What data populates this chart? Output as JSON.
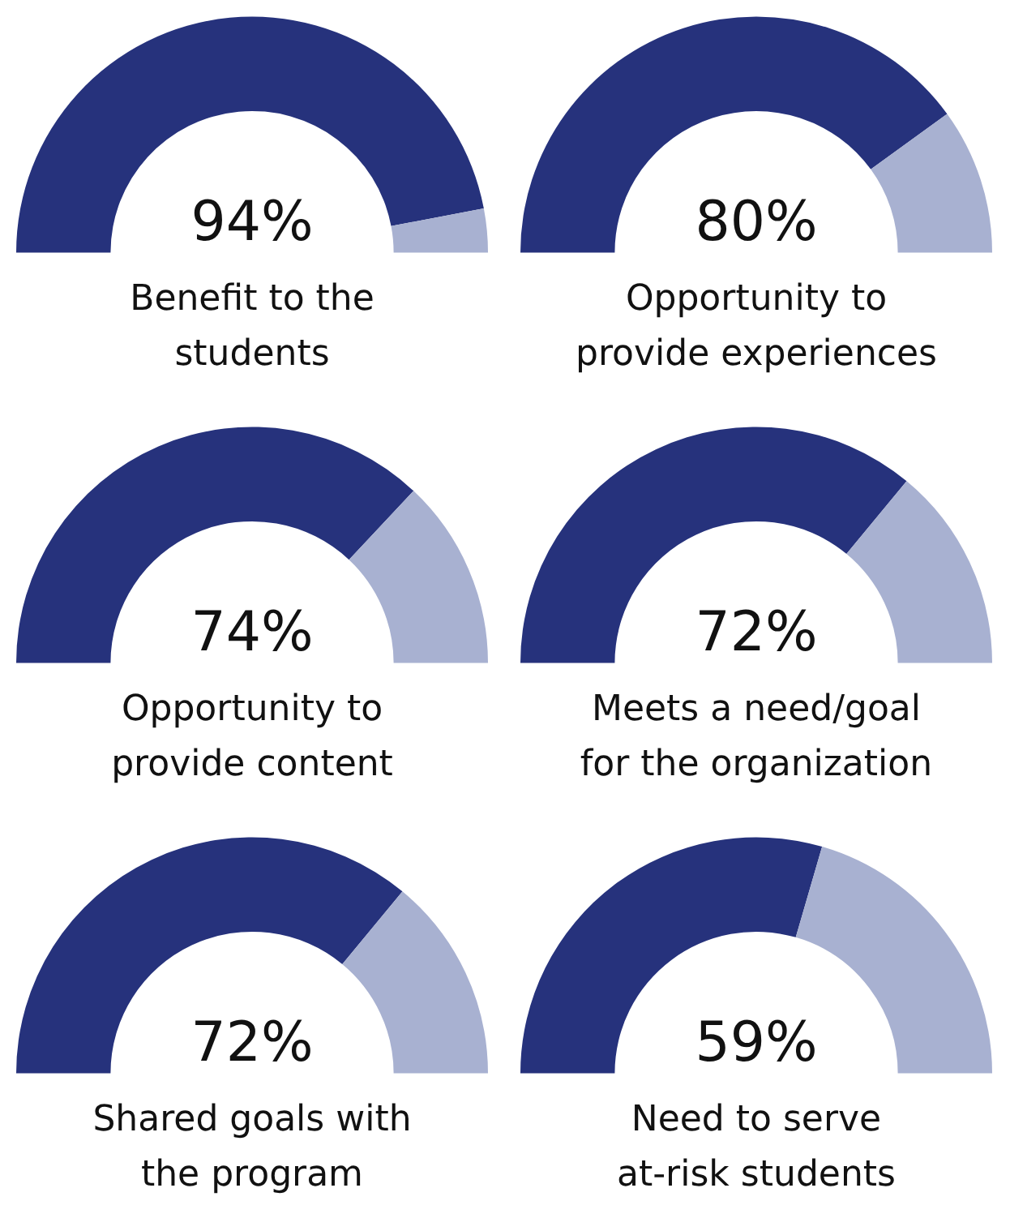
{
  "chart_data": [
    {
      "type": "donut",
      "title": "Benefit to the\nstudents",
      "categories": [
        null,
        null
      ],
      "values": [
        94,
        6
      ],
      "colors": [
        "#26327c",
        "#a8b1d1"
      ],
      "value_labels": [
        "94%",
        null
      ],
      "legend": false
    },
    {
      "type": "donut",
      "title": "Opportunity to\nprovide experiences",
      "categories": [
        null,
        null
      ],
      "values": [
        80,
        20
      ],
      "colors": [
        "#26327c",
        "#a8b1d1"
      ],
      "value_labels": [
        "80%",
        null
      ],
      "legend": false
    },
    {
      "type": "donut",
      "title": "Opportunity to\nprovide content",
      "categories": [
        null,
        null
      ],
      "values": [
        74,
        26
      ],
      "colors": [
        "#26327c",
        "#a8b1d1"
      ],
      "value_labels": [
        "74%",
        null
      ],
      "legend": false
    },
    {
      "type": "donut",
      "title": "Meets a need/goal\nfor the organization",
      "categories": [
        null,
        null
      ],
      "values": [
        72,
        28
      ],
      "colors": [
        "#26327c",
        "#a8b1d1"
      ],
      "value_labels": [
        "72%",
        null
      ],
      "legend": false
    },
    {
      "type": "donut",
      "title": "Shared goals with\nthe program",
      "categories": [
        null,
        null
      ],
      "values": [
        72,
        28
      ],
      "colors": [
        "#26327c",
        "#a8b1d1"
      ],
      "value_labels": [
        "72%",
        null
      ],
      "legend": false
    },
    {
      "type": "donut",
      "title": "Need to serve\nat-risk students",
      "categories": [
        null,
        null
      ],
      "values": [
        59,
        41
      ],
      "colors": [
        "#26327c",
        "#a8b1d1"
      ],
      "value_labels": [
        "59%",
        null
      ],
      "legend": false
    }
  ]
}
